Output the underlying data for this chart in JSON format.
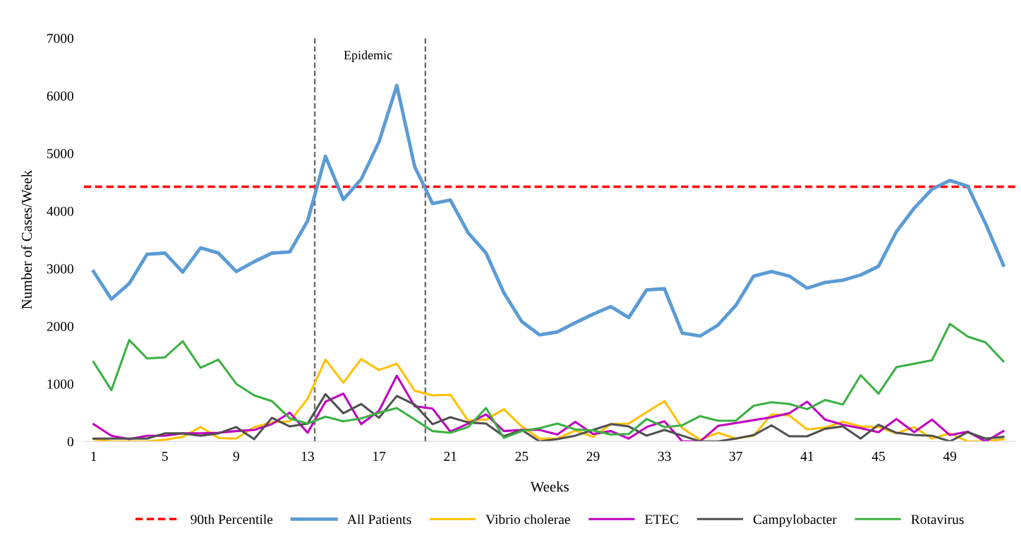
{
  "chart_data": {
    "type": "line",
    "xlabel": "Weeks",
    "ylabel": "Number of Cases/Week",
    "x": [
      1,
      2,
      3,
      4,
      5,
      6,
      7,
      8,
      9,
      10,
      11,
      12,
      13,
      14,
      15,
      16,
      17,
      18,
      19,
      20,
      21,
      22,
      23,
      24,
      25,
      26,
      27,
      28,
      29,
      30,
      31,
      32,
      33,
      34,
      35,
      36,
      37,
      38,
      39,
      40,
      41,
      42,
      43,
      44,
      45,
      46,
      47,
      48,
      49,
      50,
      51,
      52
    ],
    "xlim": [
      0.45,
      52.7
    ],
    "xticks": [
      1,
      5,
      9,
      13,
      17,
      21,
      25,
      29,
      33,
      37,
      41,
      45,
      49
    ],
    "ylim": [
      0,
      7000
    ],
    "yticks": [
      0,
      1000,
      2000,
      3000,
      4000,
      5000,
      6000,
      7000
    ],
    "grid": false,
    "legend": "bottom",
    "marker": "none",
    "line_style": "solid",
    "ref_lines": [
      {
        "axis": "y",
        "value": 4420,
        "label": "90th Percentile",
        "color": "#ff0000",
        "line_style": "dashed"
      },
      {
        "axis": "x",
        "value": 13.4,
        "color": "#707070",
        "line_style": "dashed"
      },
      {
        "axis": "x",
        "value": 19.6,
        "color": "#707070",
        "line_style": "dashed"
      }
    ],
    "annotations": [
      "Epidemic"
    ],
    "series": [
      {
        "name": "All Patients",
        "color": "#5b9bd5",
        "values": [
          2950,
          2470,
          2740,
          3250,
          3270,
          2940,
          3360,
          3270,
          2950,
          3120,
          3270,
          3290,
          3830,
          4950,
          4200,
          4550,
          5200,
          6180,
          4770,
          4130,
          4190,
          3620,
          3270,
          2580,
          2080,
          1850,
          1900,
          2060,
          2210,
          2340,
          2150,
          2630,
          2650,
          1880,
          1830,
          2020,
          2360,
          2870,
          2950,
          2870,
          2660,
          2760,
          2800,
          2890,
          3040,
          3640,
          4050,
          4380,
          4530,
          4430,
          3780,
          3060
        ]
      },
      {
        "name": "Vibrio cholerae",
        "color": "#ffc000",
        "values": [
          40,
          0,
          0,
          0,
          30,
          80,
          250,
          60,
          50,
          250,
          330,
          350,
          740,
          1420,
          1020,
          1430,
          1240,
          1350,
          880,
          800,
          810,
          360,
          380,
          560,
          260,
          50,
          50,
          190,
          80,
          300,
          310,
          510,
          700,
          230,
          30,
          150,
          50,
          100,
          470,
          450,
          210,
          240,
          340,
          260,
          250,
          140,
          250,
          50,
          140,
          0,
          0,
          40
        ]
      },
      {
        "name": "ETEC",
        "color": "#c000c0",
        "values": [
          300,
          100,
          40,
          100,
          100,
          140,
          140,
          150,
          180,
          200,
          300,
          500,
          150,
          690,
          830,
          300,
          530,
          1140,
          610,
          570,
          170,
          310,
          470,
          180,
          200,
          200,
          120,
          340,
          130,
          180,
          50,
          250,
          350,
          0,
          0,
          270,
          320,
          370,
          420,
          490,
          690,
          380,
          290,
          230,
          160,
          390,
          160,
          380,
          110,
          170,
          0,
          180
        ]
      },
      {
        "name": "Campylobacter",
        "color": "#505050",
        "values": [
          50,
          50,
          50,
          50,
          140,
          140,
          100,
          140,
          250,
          40,
          410,
          260,
          310,
          820,
          490,
          650,
          410,
          790,
          640,
          300,
          420,
          330,
          310,
          90,
          200,
          0,
          40,
          100,
          200,
          300,
          260,
          100,
          200,
          100,
          0,
          0,
          50,
          110,
          280,
          90,
          90,
          220,
          260,
          50,
          290,
          150,
          110,
          100,
          0,
          160,
          50,
          80
        ]
      },
      {
        "name": "Rotavirus",
        "color": "#3cb043",
        "values": [
          1380,
          890,
          1760,
          1440,
          1460,
          1740,
          1280,
          1420,
          1000,
          800,
          700,
          400,
          310,
          430,
          350,
          400,
          500,
          580,
          380,
          180,
          150,
          250,
          580,
          60,
          180,
          230,
          310,
          210,
          190,
          120,
          130,
          390,
          250,
          280,
          440,
          360,
          360,
          620,
          680,
          650,
          560,
          720,
          640,
          1150,
          830,
          1290,
          1350,
          1410,
          2040,
          1820,
          1720,
          1390
        ]
      }
    ]
  }
}
